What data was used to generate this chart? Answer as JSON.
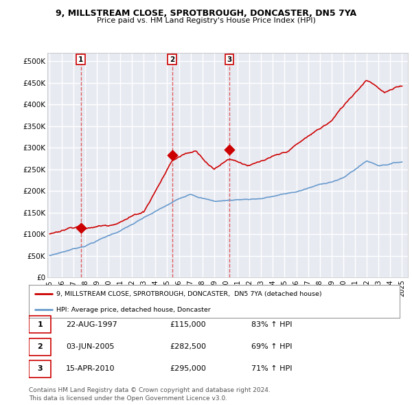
{
  "title1": "9, MILLSTREAM CLOSE, SPROTBROUGH, DONCASTER, DN5 7YA",
  "title2": "Price paid vs. HM Land Registry's House Price Index (HPI)",
  "yticks": [
    0,
    50000,
    100000,
    150000,
    200000,
    250000,
    300000,
    350000,
    400000,
    450000,
    500000
  ],
  "ytick_labels": [
    "£0",
    "£50K",
    "£100K",
    "£150K",
    "£200K",
    "£250K",
    "£300K",
    "£350K",
    "£400K",
    "£450K",
    "£500K"
  ],
  "ylim": [
    0,
    520000
  ],
  "xlim": [
    1994.8,
    2025.5
  ],
  "sale_year_nums": [
    1997.64,
    2005.42,
    2010.29
  ],
  "sale_prices": [
    115000,
    282500,
    295000
  ],
  "sale_labels": [
    "1",
    "2",
    "3"
  ],
  "sale_info": [
    [
      "1",
      "22-AUG-1997",
      "£115,000",
      "83% ↑ HPI"
    ],
    [
      "2",
      "03-JUN-2005",
      "£282,500",
      "69% ↑ HPI"
    ],
    [
      "3",
      "15-APR-2010",
      "£295,000",
      "71% ↑ HPI"
    ]
  ],
  "legend_line1": "9, MILLSTREAM CLOSE, SPROTBROUGH, DONCASTER,  DN5 7YA (detached house)",
  "legend_line2": "HPI: Average price, detached house, Doncaster",
  "footnote1": "Contains HM Land Registry data © Crown copyright and database right 2024.",
  "footnote2": "This data is licensed under the Open Government Licence v3.0.",
  "red_color": "#cc0000",
  "blue_color": "#6699cc",
  "bg_color": "#e8eaf2",
  "grid_color": "#ffffff",
  "dashed_color": "#dd4444"
}
